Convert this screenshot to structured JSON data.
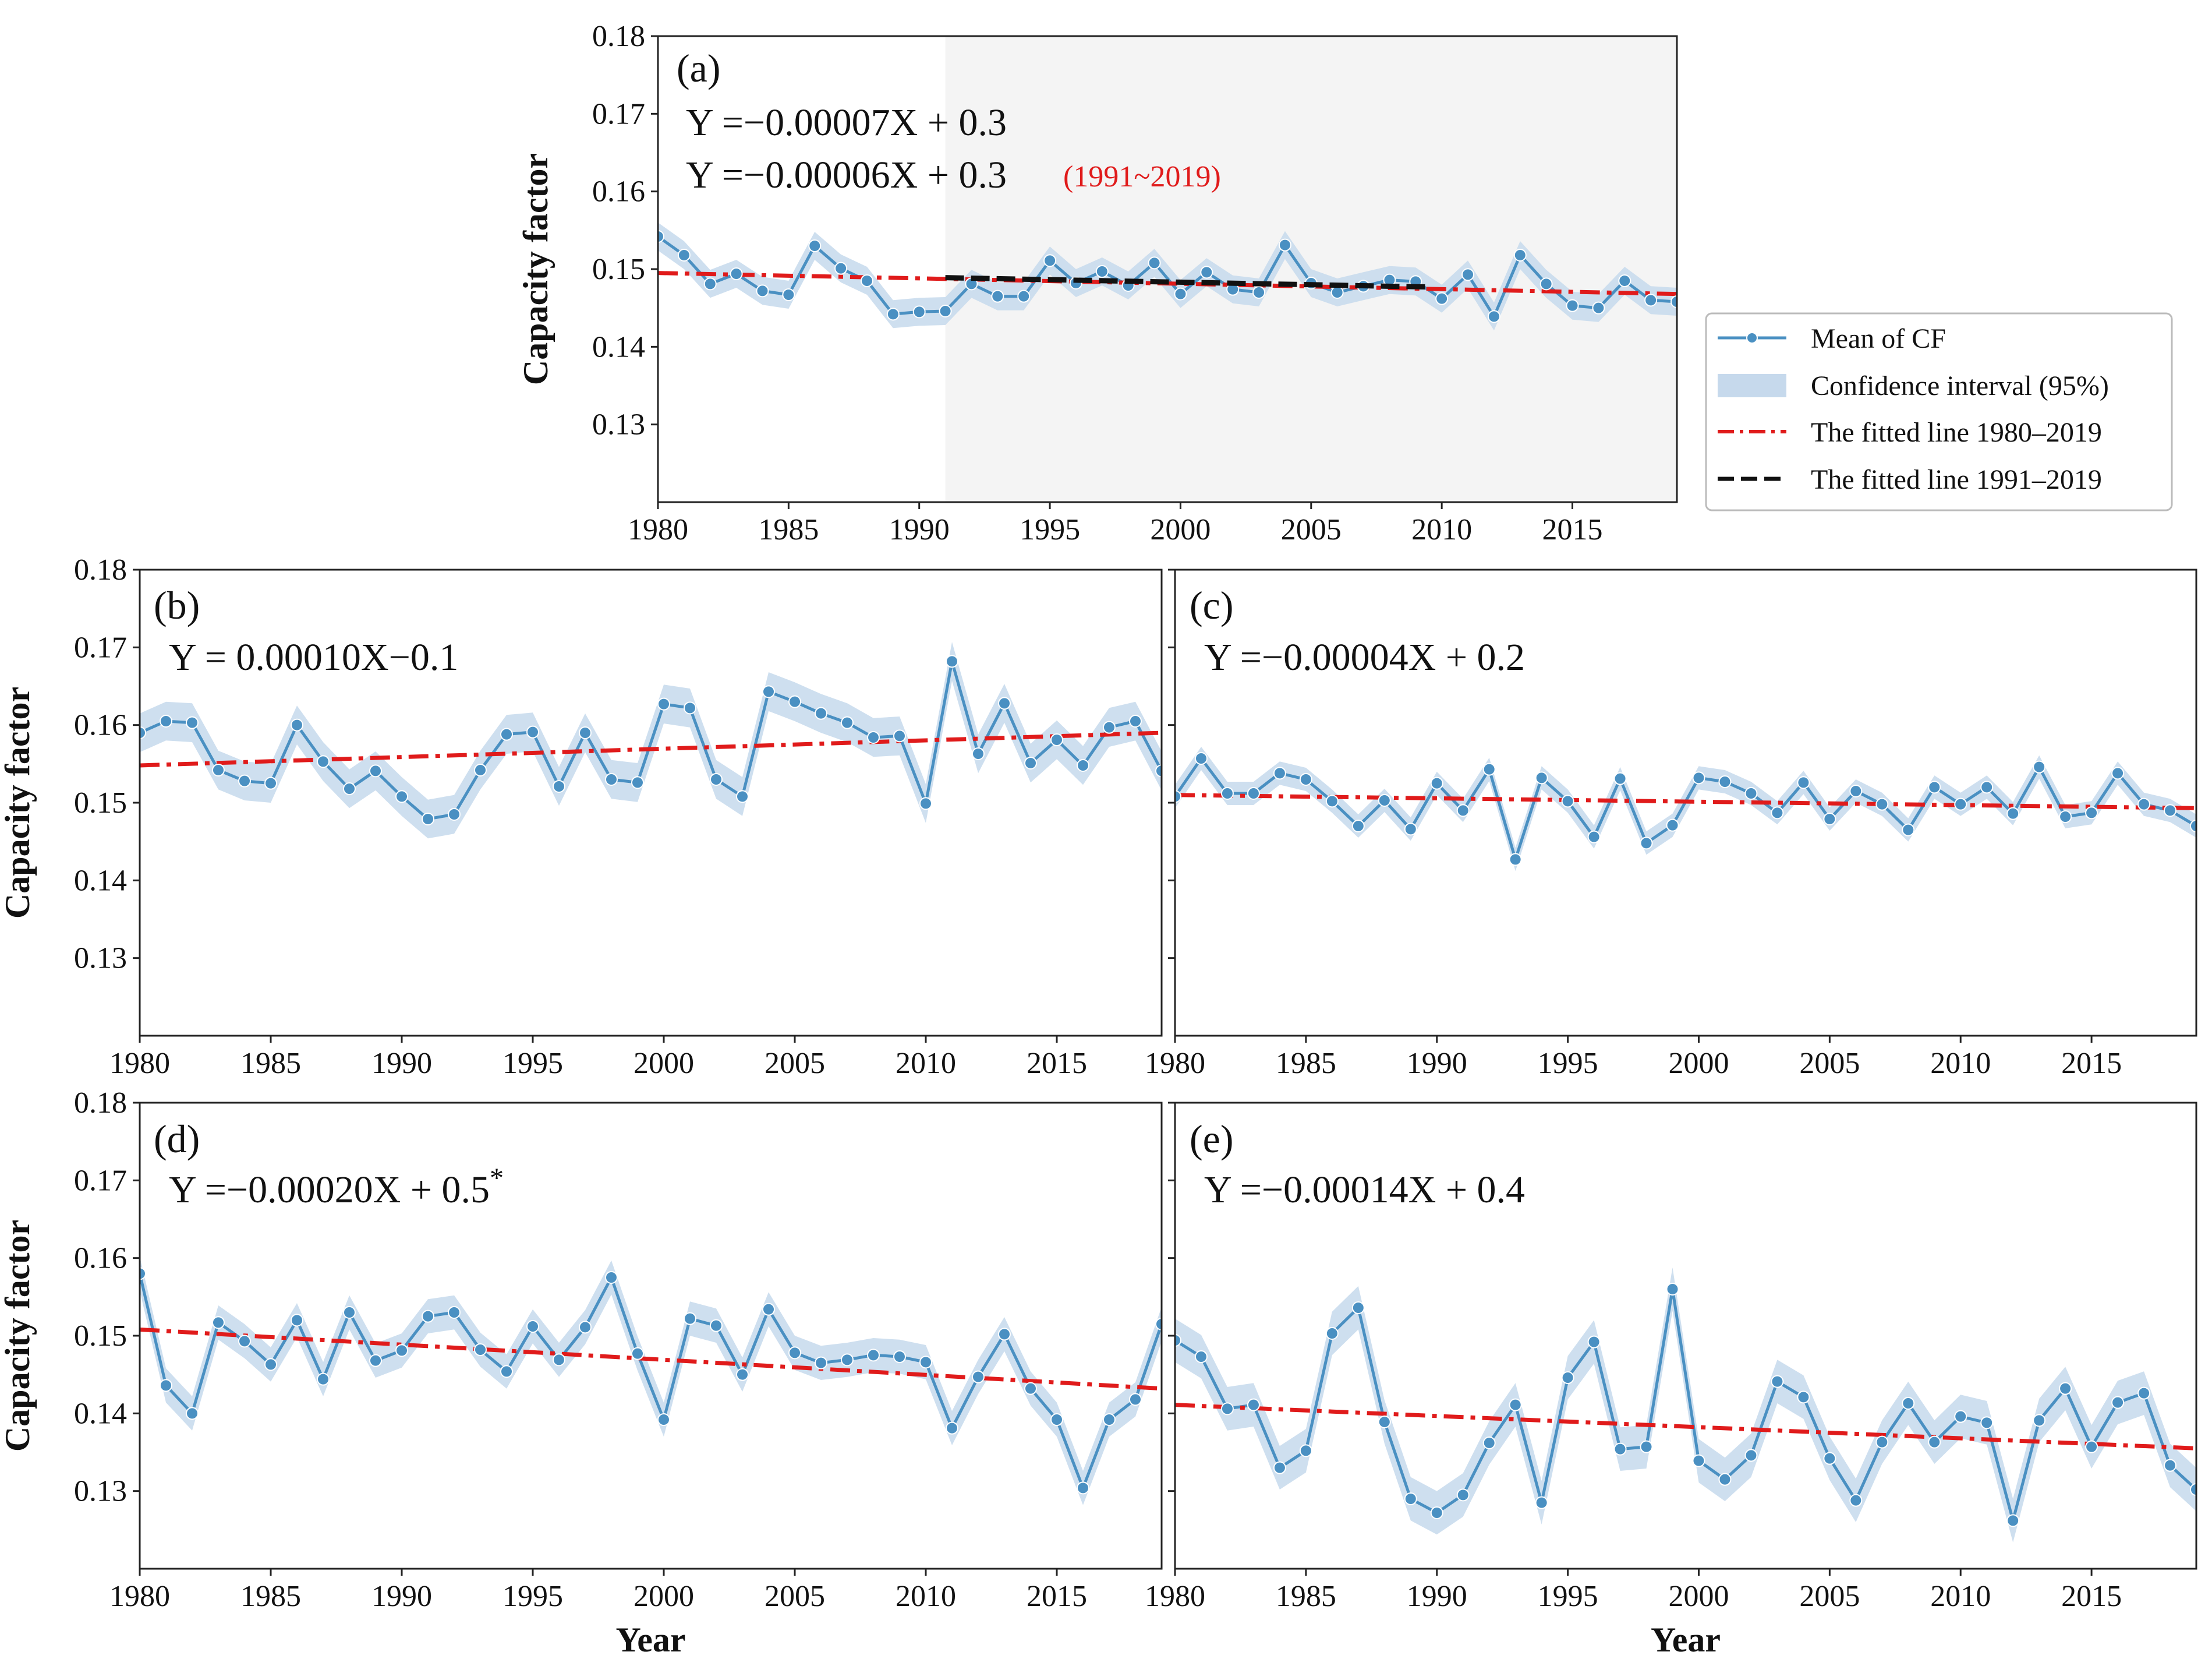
{
  "figure_note": "Annual capacity factor time series with linear fits, panels (a)-(e)",
  "colors": {
    "series": "#4a90c2",
    "band": "#c6d9ec",
    "fit_full": "#e01b1b",
    "fit_sub": "#111111",
    "shade": "#f4f4f4",
    "frame": "#222222"
  },
  "legend": {
    "items": [
      {
        "label": "Mean of CF",
        "kind": "series"
      },
      {
        "label": "Confidence interval (95%)",
        "kind": "band"
      },
      {
        "label": "The fitted line 1980–2019",
        "kind": "fit_full"
      },
      {
        "label": "The fitted line 1991–2019",
        "kind": "fit_sub"
      }
    ]
  },
  "chart_data": [
    {
      "id": "a",
      "type": "line",
      "panel_label": "(a)",
      "equation": "Y =−0.00007X + 0.3",
      "equation2": "Y =−0.00006X + 0.3",
      "equation2_note": "(1991~2019)",
      "xlabel": "",
      "ylabel": "Capacity factor",
      "xlim": [
        1980,
        2019
      ],
      "ylim": [
        0.12,
        0.18
      ],
      "xticks": [
        "1980",
        "1985",
        "1990",
        "1995",
        "2000",
        "2005",
        "2010",
        "2015"
      ],
      "yticks": [
        "0.13",
        "0.14",
        "0.15",
        "0.16",
        "0.17",
        "0.18"
      ],
      "shaded_from": 1991,
      "x": [
        1980,
        1981,
        1982,
        1983,
        1984,
        1985,
        1986,
        1987,
        1988,
        1989,
        1990,
        1991,
        1992,
        1993,
        1994,
        1995,
        1996,
        1997,
        1998,
        1999,
        2000,
        2001,
        2002,
        2003,
        2004,
        2005,
        2006,
        2007,
        2008,
        2009,
        2010,
        2011,
        2012,
        2013,
        2014,
        2015,
        2016,
        2017,
        2018,
        2019
      ],
      "values": [
        0.1542,
        0.1518,
        0.1481,
        0.1494,
        0.1472,
        0.1467,
        0.153,
        0.1501,
        0.1485,
        0.1442,
        0.1445,
        0.1446,
        0.1481,
        0.1465,
        0.1465,
        0.1511,
        0.1482,
        0.1497,
        0.1479,
        0.1508,
        0.1468,
        0.1496,
        0.1474,
        0.147,
        0.1531,
        0.1482,
        0.147,
        0.1478,
        0.1486,
        0.1484,
        0.1462,
        0.1493,
        0.1439,
        0.1518,
        0.1481,
        0.1453,
        0.145,
        0.1485,
        0.146,
        0.1458
      ],
      "ci_half_width": 0.0018,
      "fit_full": {
        "x": [
          1980,
          2019
        ],
        "y": [
          0.1495,
          0.1468
        ]
      },
      "fit_sub": {
        "x": [
          1991,
          2009.5
        ],
        "y": [
          0.1489,
          0.1477
        ]
      }
    },
    {
      "id": "b",
      "type": "line",
      "panel_label": "(b)",
      "equation": "Y = 0.00010X−0.1",
      "xlabel": "",
      "ylabel": "Capacity factor",
      "xlim": [
        1980,
        2019
      ],
      "ylim": [
        0.12,
        0.18
      ],
      "xticks": [
        "1980",
        "1985",
        "1990",
        "1995",
        "2000",
        "2005",
        "2010",
        "2015"
      ],
      "yticks": [
        "0.13",
        "0.14",
        "0.15",
        "0.16",
        "0.17",
        "0.18"
      ],
      "x": [
        1980,
        1981,
        1982,
        1983,
        1984,
        1985,
        1986,
        1987,
        1988,
        1989,
        1990,
        1991,
        1992,
        1993,
        1994,
        1995,
        1996,
        1997,
        1998,
        1999,
        2000,
        2001,
        2002,
        2003,
        2004,
        2005,
        2006,
        2007,
        2008,
        2009,
        2010,
        2011,
        2012,
        2013,
        2014,
        2015,
        2016,
        2017,
        2018,
        2019
      ],
      "values": [
        0.159,
        0.1605,
        0.1603,
        0.1542,
        0.1528,
        0.1525,
        0.16,
        0.1553,
        0.1518,
        0.1541,
        0.1508,
        0.1479,
        0.1485,
        0.1542,
        0.1588,
        0.1591,
        0.1521,
        0.159,
        0.153,
        0.1526,
        0.1627,
        0.1622,
        0.153,
        0.1508,
        0.1643,
        0.163,
        0.1615,
        0.1603,
        0.1584,
        0.1586,
        0.1499,
        0.1682,
        0.1563,
        0.1628,
        0.1551,
        0.1581,
        0.1548,
        0.1597,
        0.1605,
        0.1541
      ],
      "ci_half_width": 0.0025,
      "fit_full": {
        "x": [
          1980,
          2019
        ],
        "y": [
          0.1548,
          0.159
        ]
      }
    },
    {
      "id": "c",
      "type": "line",
      "panel_label": "(c)",
      "equation": "Y =−0.00004X + 0.2",
      "xlabel": "",
      "ylabel": "",
      "xlim": [
        1980,
        2019
      ],
      "ylim": [
        0.12,
        0.18
      ],
      "xticks": [
        "1980",
        "1985",
        "1990",
        "1995",
        "2000",
        "2005",
        "2010",
        "2015"
      ],
      "yticks": [],
      "x": [
        1980,
        1981,
        1982,
        1983,
        1984,
        1985,
        1986,
        1987,
        1988,
        1989,
        1990,
        1991,
        1992,
        1993,
        1994,
        1995,
        1996,
        1997,
        1998,
        1999,
        2000,
        2001,
        2002,
        2003,
        2004,
        2005,
        2006,
        2007,
        2008,
        2009,
        2010,
        2011,
        2012,
        2013,
        2014,
        2015,
        2016,
        2017,
        2018,
        2019
      ],
      "values": [
        0.1508,
        0.1557,
        0.1512,
        0.1512,
        0.1538,
        0.153,
        0.1502,
        0.147,
        0.1503,
        0.1466,
        0.1525,
        0.149,
        0.1543,
        0.1427,
        0.1532,
        0.1502,
        0.1456,
        0.1531,
        0.1448,
        0.1471,
        0.1532,
        0.1527,
        0.1512,
        0.1487,
        0.1526,
        0.1479,
        0.1515,
        0.1498,
        0.1465,
        0.152,
        0.1498,
        0.152,
        0.1486,
        0.1546,
        0.1482,
        0.1487,
        0.1538,
        0.1498,
        0.149,
        0.147
      ],
      "ci_half_width": 0.0015,
      "fit_full": {
        "x": [
          1980,
          2019
        ],
        "y": [
          0.151,
          0.1493
        ]
      }
    },
    {
      "id": "d",
      "type": "line",
      "panel_label": "(d)",
      "equation": "Y =−0.00020X + 0.5",
      "equation_mark": "*",
      "xlabel": "Year",
      "ylabel": "Capacity factor",
      "xlim": [
        1980,
        2019
      ],
      "ylim": [
        0.12,
        0.18
      ],
      "xticks": [
        "1980",
        "1985",
        "1990",
        "1995",
        "2000",
        "2005",
        "2010",
        "2015"
      ],
      "yticks": [
        "0.13",
        "0.14",
        "0.15",
        "0.16",
        "0.17",
        "0.18"
      ],
      "x": [
        1980,
        1981,
        1982,
        1983,
        1984,
        1985,
        1986,
        1987,
        1988,
        1989,
        1990,
        1991,
        1992,
        1993,
        1994,
        1995,
        1996,
        1997,
        1998,
        1999,
        2000,
        2001,
        2002,
        2003,
        2004,
        2005,
        2006,
        2007,
        2008,
        2009,
        2010,
        2011,
        2012,
        2013,
        2014,
        2015,
        2016,
        2017,
        2018,
        2019
      ],
      "values": [
        0.158,
        0.1436,
        0.14,
        0.1517,
        0.1493,
        0.1463,
        0.152,
        0.1444,
        0.153,
        0.1468,
        0.1481,
        0.1525,
        0.153,
        0.1482,
        0.1454,
        0.1512,
        0.1469,
        0.1511,
        0.1575,
        0.1477,
        0.1392,
        0.1522,
        0.1513,
        0.145,
        0.1534,
        0.1478,
        0.1465,
        0.1469,
        0.1475,
        0.1473,
        0.1466,
        0.1381,
        0.1447,
        0.1502,
        0.1432,
        0.1392,
        0.1304,
        0.1392,
        0.1418,
        0.1515
      ],
      "ci_half_width": 0.0022,
      "fit_full": {
        "x": [
          1980,
          2019
        ],
        "y": [
          0.1508,
          0.1432
        ]
      }
    },
    {
      "id": "e",
      "type": "line",
      "panel_label": "(e)",
      "equation": "Y =−0.00014X + 0.4",
      "xlabel": "Year",
      "ylabel": "",
      "xlim": [
        1980,
        2019
      ],
      "ylim": [
        0.12,
        0.18
      ],
      "xticks": [
        "1980",
        "1985",
        "1990",
        "1995",
        "2000",
        "2005",
        "2010",
        "2015"
      ],
      "yticks": [],
      "x": [
        1980,
        1981,
        1982,
        1983,
        1984,
        1985,
        1986,
        1987,
        1988,
        1989,
        1990,
        1991,
        1992,
        1993,
        1994,
        1995,
        1996,
        1997,
        1998,
        1999,
        2000,
        2001,
        2002,
        2003,
        2004,
        2005,
        2006,
        2007,
        2008,
        2009,
        2010,
        2011,
        2012,
        2013,
        2014,
        2015,
        2016,
        2017,
        2018,
        2019
      ],
      "values": [
        0.1494,
        0.1473,
        0.1406,
        0.1411,
        0.133,
        0.1352,
        0.1503,
        0.1536,
        0.1389,
        0.129,
        0.1272,
        0.1295,
        0.1362,
        0.1411,
        0.1285,
        0.1446,
        0.1492,
        0.1354,
        0.1357,
        0.156,
        0.1339,
        0.1315,
        0.1346,
        0.1441,
        0.1421,
        0.1342,
        0.1288,
        0.1363,
        0.1413,
        0.1363,
        0.1396,
        0.1388,
        0.1262,
        0.1391,
        0.1432,
        0.1357,
        0.1414,
        0.1426,
        0.1333,
        0.1302
      ],
      "ci_half_width": 0.0028,
      "fit_full": {
        "x": [
          1980,
          2019
        ],
        "y": [
          0.1411,
          0.1355
        ]
      }
    }
  ]
}
